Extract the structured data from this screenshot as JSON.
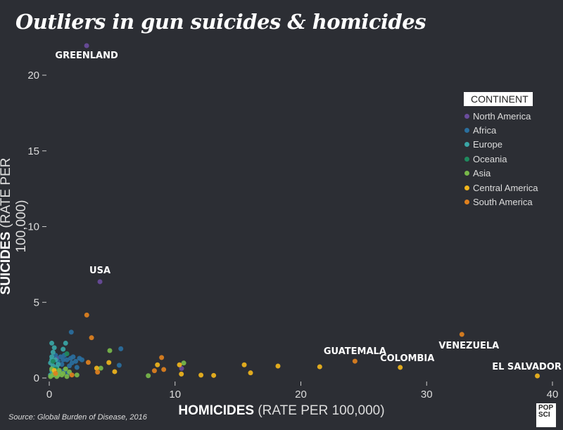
{
  "chart_data": {
    "type": "scatter",
    "title": "Outliers in gun suicides & homicides",
    "xlabel_bold": "HOMICIDES",
    "xlabel_light": "(RATE PER 100,000)",
    "ylabel_bold": "SUICIDES",
    "ylabel_light": "(RATE PER 100,000)",
    "xlim": [
      0,
      40
    ],
    "ylim": [
      0,
      20
    ],
    "xticks": [
      "0",
      "10",
      "20",
      "30",
      "40"
    ],
    "yticks": [
      "0",
      "5",
      "10",
      "15",
      "20"
    ],
    "grid": false,
    "legend_title": "CONTINENT",
    "legend_position": "right",
    "series": [
      {
        "name": "North America",
        "color": "#6a4c9c",
        "points": [
          [
            2.97,
            21.95
          ],
          [
            4.03,
            6.36
          ],
          [
            10.52,
            0.63
          ],
          [
            0.6,
            1.3
          ]
        ]
      },
      {
        "name": "Africa",
        "color": "#2a6f9e",
        "points": [
          [
            1.75,
            3.03
          ],
          [
            5.69,
            1.93
          ],
          [
            5.56,
            0.84
          ],
          [
            1.2,
            1.5
          ],
          [
            0.9,
            1.4
          ],
          [
            1.4,
            1.2
          ],
          [
            1.8,
            1.0
          ],
          [
            2.1,
            1.1
          ],
          [
            2.4,
            1.3
          ],
          [
            1.6,
            0.8
          ],
          [
            2.2,
            0.7
          ],
          [
            1.0,
            0.9
          ],
          [
            0.7,
            1.1
          ],
          [
            1.9,
            1.4
          ],
          [
            0.5,
            1.5
          ],
          [
            1.2,
            0.5
          ],
          [
            1.5,
            0.3
          ],
          [
            2.6,
            1.2
          ],
          [
            1.7,
            1.3
          ],
          [
            1.1,
            1.2
          ]
        ]
      },
      {
        "name": "Europe",
        "color": "#3aa6a6",
        "points": [
          [
            0.2,
            2.3
          ],
          [
            0.4,
            2.0
          ],
          [
            0.3,
            1.7
          ],
          [
            1.1,
            1.9
          ],
          [
            0.2,
            1.4
          ],
          [
            0.5,
            1.2
          ],
          [
            0.1,
            1.0
          ],
          [
            0.3,
            0.8
          ],
          [
            0.6,
            0.7
          ],
          [
            0.2,
            0.5
          ],
          [
            0.8,
            0.4
          ],
          [
            0.4,
            0.3
          ],
          [
            1.3,
            2.3
          ],
          [
            0.1,
            0.2
          ],
          [
            0.7,
            0.9
          ],
          [
            0.2,
            1.2
          ]
        ]
      },
      {
        "name": "Oceania",
        "color": "#1f8a5e",
        "points": [
          [
            0.3,
            1.1
          ],
          [
            1.4,
            1.6
          ],
          [
            0.5,
            0.6
          ]
        ]
      },
      {
        "name": "Asia",
        "color": "#78b84a",
        "points": [
          [
            4.81,
            1.81
          ],
          [
            4.1,
            0.65
          ],
          [
            7.87,
            0.15
          ],
          [
            10.69,
            0.99
          ],
          [
            0.1,
            0.1
          ],
          [
            0.3,
            0.2
          ],
          [
            0.6,
            0.1
          ],
          [
            1.0,
            0.2
          ],
          [
            1.4,
            0.1
          ],
          [
            0.8,
            0.5
          ],
          [
            1.3,
            0.6
          ],
          [
            0.4,
            0.4
          ],
          [
            1.6,
            0.4
          ],
          [
            2.2,
            0.2
          ],
          [
            0.2,
            0.6
          ],
          [
            1.1,
            0.3
          ],
          [
            0.7,
            0.2
          ]
        ]
      },
      {
        "name": "Central America",
        "color": "#f0b51c",
        "points": [
          [
            3.77,
            0.65
          ],
          [
            4.74,
            1.02
          ],
          [
            5.2,
            0.42
          ],
          [
            8.6,
            0.87
          ],
          [
            10.35,
            0.87
          ],
          [
            10.5,
            0.26
          ],
          [
            12.06,
            0.19
          ],
          [
            13.07,
            0.17
          ],
          [
            15.5,
            0.87
          ],
          [
            16.0,
            0.34
          ],
          [
            18.18,
            0.79
          ],
          [
            21.5,
            0.74
          ],
          [
            27.9,
            0.7
          ],
          [
            38.8,
            0.14
          ],
          [
            0.4,
            0.5
          ]
        ]
      },
      {
        "name": "South America",
        "color": "#e0811e",
        "points": [
          [
            2.98,
            4.16
          ],
          [
            3.36,
            2.66
          ],
          [
            3.1,
            1.03
          ],
          [
            3.84,
            0.39
          ],
          [
            8.36,
            0.48
          ],
          [
            8.93,
            1.35
          ],
          [
            9.1,
            0.56
          ],
          [
            24.3,
            1.11
          ],
          [
            32.8,
            2.88
          ],
          [
            1.8,
            0.2
          ],
          [
            0.5,
            0.3
          ]
        ]
      }
    ],
    "annotations": [
      {
        "text": "GREENLAND",
        "x": 2.97,
        "y": 21.95
      },
      {
        "text": "USA",
        "x": 4.03,
        "y": 6.36
      },
      {
        "text": "GUATEMALA",
        "x": 24.3,
        "y": 1.11
      },
      {
        "text": "COLOMBIA",
        "x": 27.9,
        "y": 0.7
      },
      {
        "text": "VENEZUELA",
        "x": 32.8,
        "y": 2.88
      },
      {
        "text": "EL SALVADOR",
        "x": 38.8,
        "y": 0.14
      }
    ]
  },
  "source": "Source: Global Burden of Disease, 2016",
  "logo": {
    "line1": "POP",
    "line2": "SCI"
  }
}
